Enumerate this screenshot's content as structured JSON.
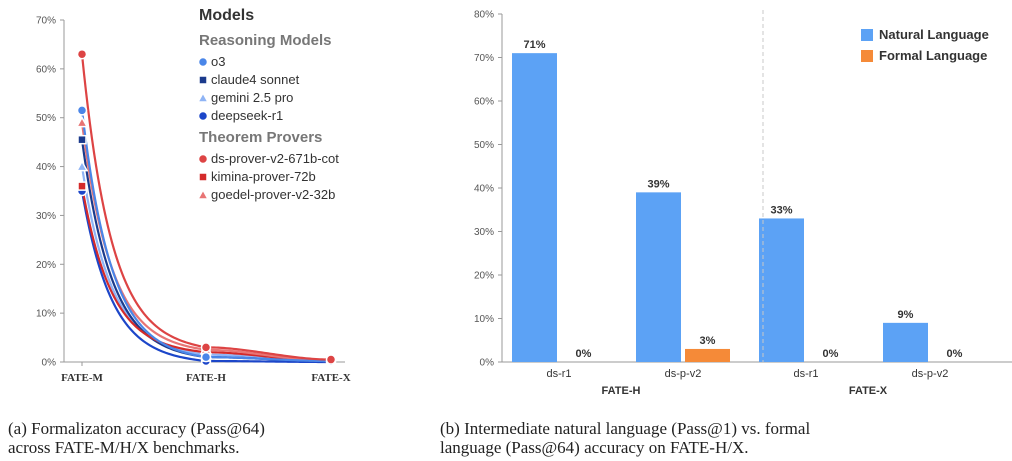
{
  "captions": {
    "a_line1": "(a) Formalizaton accuracy (Pass@64)",
    "a_line2": "across FATE-M/H/X benchmarks.",
    "b_line1": "(b) Intermediate natural language (Pass@1) vs. formal",
    "b_line2": "language (Pass@64) accuracy on FATE-H/X."
  },
  "chart_data": [
    {
      "type": "line",
      "x": [
        "FATE-M",
        "FATE-H",
        "FATE-X"
      ],
      "ylim": [
        0,
        70
      ],
      "yticks": [
        "0%",
        "10%",
        "20%",
        "30%",
        "40%",
        "50%",
        "60%",
        "70%"
      ],
      "legend": {
        "title": "Models",
        "groups": [
          {
            "title": "Reasoning Models",
            "items": [
              0,
              1,
              2,
              3
            ]
          },
          {
            "title": "Theorem Provers",
            "items": [
              4,
              5,
              6
            ]
          }
        ]
      },
      "series": [
        {
          "name": "o3",
          "values": [
            51.5,
            1.0,
            0.2
          ],
          "color": "#4a86e8",
          "marker": "circle"
        },
        {
          "name": "claude4 sonnet",
          "values": [
            45.5,
            1.0,
            0.2
          ],
          "color": "#1b3a8c",
          "marker": "square"
        },
        {
          "name": "gemini 2.5 pro",
          "values": [
            40.0,
            1.5,
            0.2
          ],
          "color": "#8fb4f5",
          "marker": "triangle"
        },
        {
          "name": "deepseek-r1",
          "values": [
            35.0,
            0.2,
            0.0
          ],
          "color": "#1c46c9",
          "marker": "circle"
        },
        {
          "name": "ds-prover-v2-671b-cot",
          "values": [
            63.0,
            3.0,
            0.5
          ],
          "color": "#dd4444",
          "marker": "circle"
        },
        {
          "name": "kimina-prover-72b",
          "values": [
            36.0,
            2.0,
            0.2
          ],
          "color": "#d42a2a",
          "marker": "square"
        },
        {
          "name": "goedel-prover-v2-32b",
          "values": [
            49.0,
            2.5,
            0.2
          ],
          "color": "#e87474",
          "marker": "triangle"
        }
      ]
    },
    {
      "type": "bar",
      "ylim": [
        0,
        80
      ],
      "yticks": [
        "0%",
        "10%",
        "20%",
        "30%",
        "40%",
        "50%",
        "60%",
        "70%",
        "80%"
      ],
      "groups": [
        "FATE-H",
        "FATE-X"
      ],
      "categories": [
        "ds-r1",
        "ds-p-v2",
        "ds-r1",
        "ds-p-v2"
      ],
      "series": [
        {
          "name": "Natural Language",
          "values": [
            71,
            39,
            33,
            9
          ],
          "labels": [
            "71%",
            "39%",
            "33%",
            "9%"
          ],
          "color": "#5ca2f5"
        },
        {
          "name": "Formal Language",
          "values": [
            0,
            3,
            0,
            0
          ],
          "labels": [
            "0%",
            "3%",
            "0%",
            "0%"
          ],
          "color": "#f58a38"
        }
      ]
    }
  ]
}
